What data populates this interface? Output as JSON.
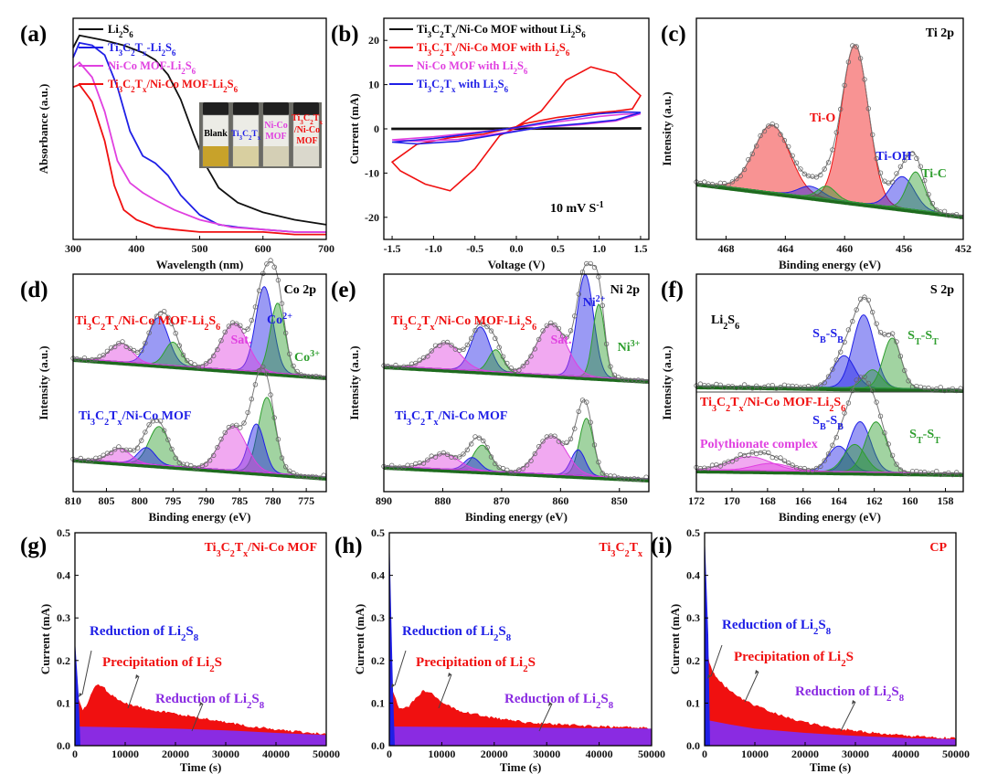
{
  "figure": {
    "colors": {
      "black": "#111111",
      "blue": "#1f1fe6",
      "magenta": "#e040e0",
      "red": "#f01010",
      "green": "#2e9e2e",
      "purple": "#8a2be2",
      "darkgreen": "#1e6b1e"
    }
  },
  "chart_data": [
    {
      "id": "a",
      "panel_label": "(a)",
      "type": "line",
      "xlabel": "Wavelength (nm)",
      "ylabel": "Absorbance (a.u.)",
      "xlim": [
        300,
        700
      ],
      "xticks": [
        "300",
        "400",
        "500",
        "600",
        "700"
      ],
      "series": [
        {
          "name": "Li₂S₆",
          "color": "#111111",
          "x": [
            300,
            310,
            330,
            350,
            380,
            410,
            430,
            450,
            470,
            490,
            510,
            530,
            560,
            600,
            650,
            700
          ],
          "y": [
            0.78,
            0.83,
            0.82,
            0.81,
            0.79,
            0.76,
            0.73,
            0.67,
            0.57,
            0.43,
            0.3,
            0.21,
            0.15,
            0.11,
            0.08,
            0.06
          ]
        },
        {
          "name": "Ti₃C₂Tₓ-Li₂S₆",
          "color": "#1f1fe6",
          "x": [
            300,
            310,
            330,
            350,
            370,
            390,
            410,
            430,
            450,
            470,
            500,
            530,
            560,
            600,
            650,
            700
          ],
          "y": [
            0.74,
            0.8,
            0.79,
            0.75,
            0.62,
            0.44,
            0.34,
            0.31,
            0.26,
            0.18,
            0.1,
            0.06,
            0.05,
            0.04,
            0.03,
            0.03
          ]
        },
        {
          "name": "Ni-Co MOF-Li₂S₆",
          "color": "#e040e0",
          "x": [
            300,
            310,
            330,
            350,
            370,
            390,
            410,
            430,
            460,
            500,
            550,
            600,
            650,
            700
          ],
          "y": [
            0.7,
            0.72,
            0.66,
            0.52,
            0.32,
            0.23,
            0.19,
            0.16,
            0.12,
            0.08,
            0.05,
            0.04,
            0.03,
            0.03
          ]
        },
        {
          "name": "Ti₃C₂Tₓ/Ni-Co MOF-Li₂S₆",
          "color": "#f01010",
          "x": [
            300,
            310,
            330,
            350,
            365,
            380,
            400,
            430,
            460,
            500,
            550,
            600,
            650,
            700
          ],
          "y": [
            0.62,
            0.63,
            0.56,
            0.4,
            0.22,
            0.12,
            0.08,
            0.05,
            0.04,
            0.03,
            0.03,
            0.03,
            0.02,
            0.02
          ]
        }
      ],
      "inset_labels": [
        "Blank",
        "Ti₃C₂Tₓ",
        "Ni-Co MOF",
        "Ti₃C₂Tₓ /Ni-Co MOF"
      ]
    },
    {
      "id": "b",
      "panel_label": "(b)",
      "type": "line",
      "xlabel": "Voltage (V)",
      "ylabel": "Current (mA)",
      "xlim": [
        -1.6,
        1.6
      ],
      "ylim": [
        -25,
        25
      ],
      "xticks": [
        "-1.5",
        "-1.0",
        "-0.5",
        "0.0",
        "0.5",
        "1.0",
        "1.5"
      ],
      "yticks": [
        "-20",
        "-10",
        "0",
        "10",
        "20"
      ],
      "annotation": "10 mV S⁻¹",
      "series": [
        {
          "name": "Ti₃C₂Tₓ/Ni-Co MOF without Li₂S₆",
          "color": "#111111",
          "x": [
            -1.5,
            1.5,
            1.5,
            -1.5
          ],
          "y": [
            0.1,
            0.2,
            0,
            -0.1
          ]
        },
        {
          "name": "Ti₃C₂Tₓ/Ni-Co MOF with Li₂S₆",
          "color": "#f01010",
          "x": [
            -1.5,
            -1.2,
            -0.8,
            -0.4,
            0,
            0.3,
            0.6,
            0.9,
            1.2,
            1.5,
            1.4,
            1.2,
            0.9,
            0.5,
            0.1,
            -0.2,
            -0.5,
            -0.8,
            -1.1,
            -1.4,
            -1.5
          ],
          "y": [
            -7.5,
            -3.5,
            -2.0,
            -1.2,
            0.5,
            4.0,
            11.0,
            14.0,
            12.5,
            7.5,
            4.5,
            4.0,
            3.5,
            2.6,
            1.2,
            -1.5,
            -9.0,
            -14.0,
            -12.5,
            -9.5,
            -7.5
          ]
        },
        {
          "name": "Ni-Co MOF with Li₂S₆",
          "color": "#e040e0",
          "x": [
            -1.5,
            -1.0,
            -0.5,
            0,
            0.5,
            1.0,
            1.3,
            1.5,
            1.2,
            0.8,
            0.3,
            -0.2,
            -0.7,
            -1.2,
            -1.5
          ],
          "y": [
            -2.5,
            -1.8,
            -0.8,
            0.2,
            1.6,
            2.8,
            3.3,
            3.4,
            1.8,
            1.0,
            0.3,
            -1.0,
            -2.4,
            -2.8,
            -2.5
          ]
        },
        {
          "name": "Ti₃C₂Tₓ with Li₂S₆",
          "color": "#1f1fe6",
          "x": [
            -1.5,
            -1.0,
            -0.5,
            0,
            0.5,
            1.0,
            1.3,
            1.5,
            1.2,
            0.8,
            0.3,
            -0.2,
            -0.7,
            -1.2,
            -1.5
          ],
          "y": [
            -3.0,
            -2.2,
            -1.0,
            0.3,
            2.0,
            3.4,
            3.8,
            3.7,
            2.0,
            1.2,
            0.4,
            -1.2,
            -2.8,
            -3.4,
            -3.0
          ]
        }
      ]
    },
    {
      "id": "c",
      "panel_label": "(c)",
      "type": "line",
      "title": "Ti 2p",
      "xlabel": "Binding energy (eV)",
      "ylabel": "Intensity (a.u.)",
      "xlim": [
        470,
        452
      ],
      "xticks": [
        "468",
        "464",
        "460",
        "456",
        "452"
      ],
      "peaks": [
        {
          "label": "Ti-O",
          "center": 459.3,
          "height": 0.75,
          "width": 0.9,
          "color": "#f01010"
        },
        {
          "label": "",
          "center": 464.9,
          "height": 0.32,
          "width": 1.2,
          "color": "#f01010"
        },
        {
          "label": "Ti-OH",
          "center": 456.1,
          "height": 0.15,
          "width": 0.8,
          "color": "#1f1fe6"
        },
        {
          "label": "",
          "center": 462.3,
          "height": 0.05,
          "width": 0.8,
          "color": "#1f1fe6"
        },
        {
          "label": "Ti-C",
          "center": 455.2,
          "height": 0.18,
          "width": 0.6,
          "color": "#2e9e2e"
        },
        {
          "label": "",
          "center": 461.2,
          "height": 0.06,
          "width": 0.6,
          "color": "#2e9e2e"
        }
      ],
      "labels": [
        "Ti-O",
        "Ti-OH",
        "Ti-C"
      ]
    },
    {
      "id": "d",
      "panel_label": "(d)",
      "type": "line",
      "title": "Co 2p",
      "xlabel": "Binding energy (eV)",
      "ylabel": "Intensity (a.u.)",
      "xlim": [
        810,
        772
      ],
      "xticks": [
        "810",
        "805",
        "800",
        "795",
        "790",
        "785",
        "780",
        "775"
      ],
      "labels": {
        "top": "Ti₃C₂Tₓ/Ni-Co MOF-Li₂S₆",
        "bottom": "Ti₃C₂Tₓ/Ni-Co MOF",
        "sat": "Sat.",
        "co2": "Co²⁺",
        "co3": "Co³⁺"
      },
      "top_peaks": [
        {
          "center": 781.3,
          "height": 0.55,
          "width": 1.3,
          "color": "#1f1fe6"
        },
        {
          "center": 779.3,
          "height": 0.45,
          "width": 1.1,
          "color": "#2e9e2e"
        },
        {
          "center": 785.8,
          "height": 0.3,
          "width": 2.0,
          "color": "#e040e0"
        },
        {
          "center": 797.2,
          "height": 0.3,
          "width": 1.5,
          "color": "#1f1fe6"
        },
        {
          "center": 795.0,
          "height": 0.15,
          "width": 1.2,
          "color": "#2e9e2e"
        },
        {
          "center": 802.8,
          "height": 0.12,
          "width": 1.6,
          "color": "#e040e0"
        }
      ],
      "bottom_peaks": [
        {
          "center": 780.9,
          "height": 0.55,
          "width": 1.3,
          "color": "#2e9e2e"
        },
        {
          "center": 782.5,
          "height": 0.35,
          "width": 1.2,
          "color": "#1f1fe6"
        },
        {
          "center": 786.0,
          "height": 0.32,
          "width": 2.0,
          "color": "#e040e0"
        },
        {
          "center": 797.1,
          "height": 0.28,
          "width": 1.5,
          "color": "#2e9e2e"
        },
        {
          "center": 799.0,
          "height": 0.12,
          "width": 1.3,
          "color": "#1f1fe6"
        },
        {
          "center": 803.0,
          "height": 0.1,
          "width": 1.6,
          "color": "#e040e0"
        }
      ]
    },
    {
      "id": "e",
      "panel_label": "(e)",
      "type": "line",
      "title": "Ni 2p",
      "xlabel": "Binding energy (eV)",
      "ylabel": "Intensity (a.u.)",
      "xlim": [
        890,
        845
      ],
      "xticks": [
        "890",
        "880",
        "870",
        "860",
        "850"
      ],
      "labels": {
        "top": "Ti₃C₂Tₓ/Ni-Co MOF-Li₂S₆",
        "bottom": "Ti₃C₂Tₓ/Ni-Co MOF",
        "sat": "Sat.",
        "ni2": "Ni²⁺",
        "ni3": "Ni³⁺"
      },
      "top_peaks": [
        {
          "center": 855.8,
          "height": 0.7,
          "width": 1.4,
          "color": "#1f1fe6"
        },
        {
          "center": 853.5,
          "height": 0.5,
          "width": 1.0,
          "color": "#2e9e2e"
        },
        {
          "center": 861.5,
          "height": 0.35,
          "width": 2.5,
          "color": "#e040e0"
        },
        {
          "center": 873.6,
          "height": 0.3,
          "width": 1.6,
          "color": "#1f1fe6"
        },
        {
          "center": 871.0,
          "height": 0.15,
          "width": 1.2,
          "color": "#2e9e2e"
        },
        {
          "center": 879.6,
          "height": 0.18,
          "width": 2.5,
          "color": "#e040e0"
        }
      ],
      "bottom_peaks": [
        {
          "center": 855.6,
          "height": 0.45,
          "width": 1.2,
          "color": "#2e9e2e"
        },
        {
          "center": 857.0,
          "height": 0.2,
          "width": 1.2,
          "color": "#1f1fe6"
        },
        {
          "center": 861.5,
          "height": 0.3,
          "width": 2.5,
          "color": "#e040e0"
        },
        {
          "center": 873.3,
          "height": 0.2,
          "width": 1.5,
          "color": "#2e9e2e"
        },
        {
          "center": 875.0,
          "height": 0.1,
          "width": 1.3,
          "color": "#1f1fe6"
        },
        {
          "center": 879.8,
          "height": 0.12,
          "width": 2.5,
          "color": "#e040e0"
        }
      ]
    },
    {
      "id": "f",
      "panel_label": "(f)",
      "type": "line",
      "title": "S 2p",
      "xlabel": "Binding energy (eV)",
      "ylabel": "Intensity (a.u.)",
      "xlim": [
        172,
        157
      ],
      "xticks": [
        "172",
        "170",
        "168",
        "166",
        "164",
        "162",
        "160",
        "158"
      ],
      "labels": {
        "top": "Li₂S₆",
        "bottom": "Ti₃C₂Tₓ/Ni-Co MOF-Li₂S₆",
        "sbsb": "S_B-S_B",
        "stst": "S_T-S_T",
        "poly": "Polythionate complex"
      },
      "top_peaks": [
        {
          "center": 162.6,
          "height": 0.8,
          "width": 0.6,
          "color": "#1f1fe6"
        },
        {
          "center": 163.7,
          "height": 0.35,
          "width": 0.6,
          "color": "#1f1fe6"
        },
        {
          "center": 161.0,
          "height": 0.55,
          "width": 0.5,
          "color": "#2e9e2e"
        },
        {
          "center": 162.1,
          "height": 0.2,
          "width": 0.5,
          "color": "#2e9e2e"
        }
      ],
      "bottom_peaks": [
        {
          "center": 162.8,
          "height": 0.55,
          "width": 0.6,
          "color": "#1f1fe6"
        },
        {
          "center": 164.0,
          "height": 0.28,
          "width": 0.6,
          "color": "#1f1fe6"
        },
        {
          "center": 161.9,
          "height": 0.55,
          "width": 0.6,
          "color": "#2e9e2e"
        },
        {
          "center": 163.1,
          "height": 0.3,
          "width": 0.6,
          "color": "#2e9e2e"
        },
        {
          "center": 169.0,
          "height": 0.15,
          "width": 1.2,
          "color": "#e040e0"
        },
        {
          "center": 167.8,
          "height": 0.08,
          "width": 1.0,
          "color": "#e040e0"
        }
      ]
    },
    {
      "id": "g",
      "panel_label": "(g)",
      "type": "area",
      "title": "Ti₃C₂Tₓ/Ni-Co MOF",
      "xlabel": "Time (s)",
      "ylabel": "Current (mA)",
      "xlim": [
        0,
        50000
      ],
      "ylim": [
        0,
        0.5
      ],
      "xticks": [
        "0",
        "10000",
        "20000",
        "30000",
        "40000",
        "50000"
      ],
      "yticks": [
        "0.0",
        "0.1",
        "0.2",
        "0.3",
        "0.4",
        "0.5"
      ],
      "labels": [
        "Reduction of Li₂S₈",
        "Precipitation of Li₂S",
        "Reduction of Li₂S₈"
      ],
      "spike": 0.25,
      "total": {
        "x": [
          0,
          500,
          1500,
          2500,
          3500,
          4500,
          5500,
          7000,
          10000,
          15000,
          20000,
          25000,
          30000,
          35000,
          40000,
          45000,
          50000
        ],
        "y": [
          0.25,
          0.12,
          0.08,
          0.1,
          0.13,
          0.145,
          0.14,
          0.12,
          0.1,
          0.085,
          0.075,
          0.065,
          0.055,
          0.045,
          0.038,
          0.032,
          0.027
        ]
      },
      "base": {
        "x": [
          0,
          10000,
          20000,
          30000,
          40000,
          50000
        ],
        "y": [
          0.045,
          0.043,
          0.04,
          0.036,
          0.03,
          0.025
        ]
      }
    },
    {
      "id": "h",
      "panel_label": "(h)",
      "type": "area",
      "title": "Ti₃C₂Tₓ",
      "xlabel": "Time (s)",
      "ylabel": "Current (mA)",
      "xlim": [
        0,
        50000
      ],
      "ylim": [
        0,
        0.5
      ],
      "xticks": [
        "0",
        "10000",
        "20000",
        "30000",
        "40000",
        "50000"
      ],
      "yticks": [
        "0.0",
        "0.1",
        "0.2",
        "0.3",
        "0.4",
        "0.5"
      ],
      "labels": [
        "Reduction of Li₂S₈",
        "Precipitation of Li₂S",
        "Reduction of Li₂S₈"
      ],
      "spike": 0.5,
      "total": {
        "x": [
          0,
          600,
          2000,
          3500,
          5000,
          6500,
          8000,
          10000,
          14000,
          20000,
          26000,
          32000,
          40000,
          50000
        ],
        "y": [
          0.45,
          0.13,
          0.085,
          0.09,
          0.11,
          0.13,
          0.125,
          0.1,
          0.08,
          0.065,
          0.055,
          0.05,
          0.045,
          0.042
        ]
      },
      "base": {
        "x": [
          0,
          10000,
          20000,
          30000,
          40000,
          50000
        ],
        "y": [
          0.045,
          0.044,
          0.043,
          0.042,
          0.041,
          0.04
        ]
      }
    },
    {
      "id": "i",
      "panel_label": "(i)",
      "type": "area",
      "title": "CP",
      "xlabel": "Time (s)",
      "ylabel": "Current (mA)",
      "xlim": [
        0,
        50000
      ],
      "ylim": [
        0,
        0.5
      ],
      "xticks": [
        "0",
        "10000",
        "20000",
        "30000",
        "40000",
        "50000"
      ],
      "yticks": [
        "0.0",
        "0.1",
        "0.2",
        "0.3",
        "0.4",
        "0.5"
      ],
      "labels": [
        "Reduction of Li₂S₈",
        "Precipitation of Li₂S",
        "Reduction of Li₂S₈"
      ],
      "spike": 0.5,
      "total": {
        "x": [
          0,
          300,
          800,
          1500,
          2500,
          4000,
          6000,
          9000,
          13000,
          18000,
          24000,
          30000,
          36000,
          42000,
          50000
        ],
        "y": [
          0.5,
          0.26,
          0.2,
          0.175,
          0.16,
          0.14,
          0.12,
          0.1,
          0.08,
          0.06,
          0.045,
          0.035,
          0.027,
          0.022,
          0.017
        ]
      },
      "base": {
        "x": [
          0,
          500,
          5000,
          10000,
          20000,
          30000,
          40000,
          50000
        ],
        "y": [
          0.07,
          0.06,
          0.05,
          0.04,
          0.03,
          0.023,
          0.018,
          0.015
        ]
      }
    }
  ]
}
